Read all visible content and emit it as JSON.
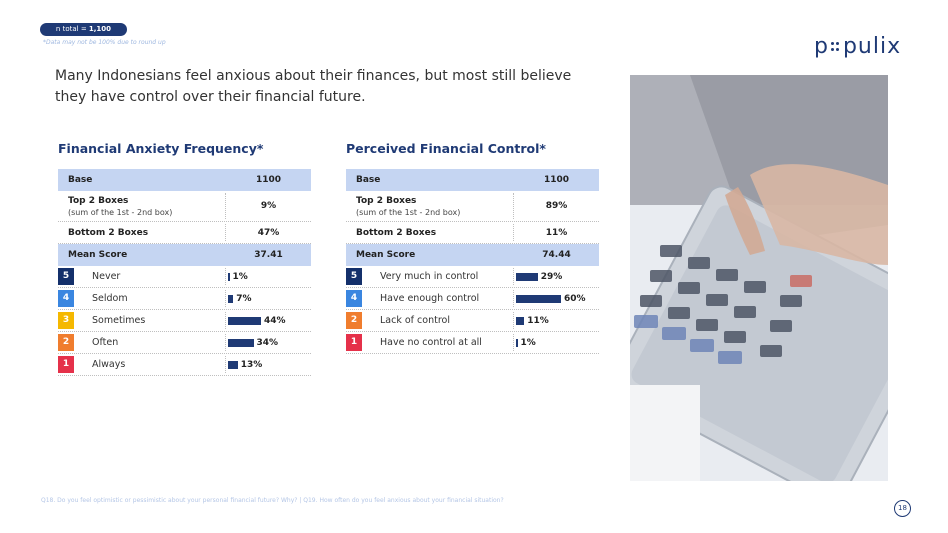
{
  "header": {
    "n_total_label": "n total = ",
    "n_total_value": "1,100",
    "note": "*Data may not be 100% due to round up",
    "logo_text_a": "p",
    "logo_text_b": "pulix"
  },
  "headline": "Many Indonesians feel anxious about their finances, but most still believe they have control over their financial future.",
  "footnote": "Q18. Do you feel optimistic or pessimistic about your personal financial future? Why? | Q19. How often do you feel anxious about your financial situation?",
  "page_number": "18",
  "colors": {
    "navy": "#1f3a75",
    "header_fill": "#c5d5f2",
    "scale_5": "#14306b",
    "scale_4": "#3a86e0",
    "scale_3": "#f5b800",
    "scale_2": "#f07d2e",
    "scale_1": "#e5314a"
  },
  "chart_data": [
    {
      "type": "bar",
      "title": "Financial Anxiety Frequency*",
      "summary": {
        "base_label": "Base",
        "base_value": "1100",
        "top2_label": "Top 2 Boxes",
        "top2_sub": "(sum of the 1st - 2nd box)",
        "top2_value": "9%",
        "bottom2_label": "Bottom 2 Boxes",
        "bottom2_value": "47%",
        "mean_label": "Mean Score",
        "mean_value": "37.41"
      },
      "categories": [
        "Never",
        "Seldom",
        "Sometimes",
        "Often",
        "Always"
      ],
      "scale": [
        "5",
        "4",
        "3",
        "2",
        "1"
      ],
      "values": [
        1,
        7,
        44,
        34,
        13
      ],
      "labels": [
        "1%",
        "7%",
        "44%",
        "34%",
        "13%"
      ]
    },
    {
      "type": "bar",
      "title": "Perceived Financial Control*",
      "summary": {
        "base_label": "Base",
        "base_value": "1100",
        "top2_label": "Top 2 Boxes",
        "top2_sub": "(sum of the 1st - 2nd box)",
        "top2_value": "89%",
        "bottom2_label": "Bottom 2 Boxes",
        "bottom2_value": "11%",
        "mean_label": "Mean Score",
        "mean_value": "74.44"
      },
      "categories": [
        "Very much in control",
        "Have enough control",
        "Lack of control",
        "Have no control at all"
      ],
      "scale": [
        "5",
        "4",
        "2",
        "1"
      ],
      "values": [
        29,
        60,
        11,
        1
      ],
      "labels": [
        "29%",
        "60%",
        "11%",
        "1%"
      ]
    }
  ]
}
